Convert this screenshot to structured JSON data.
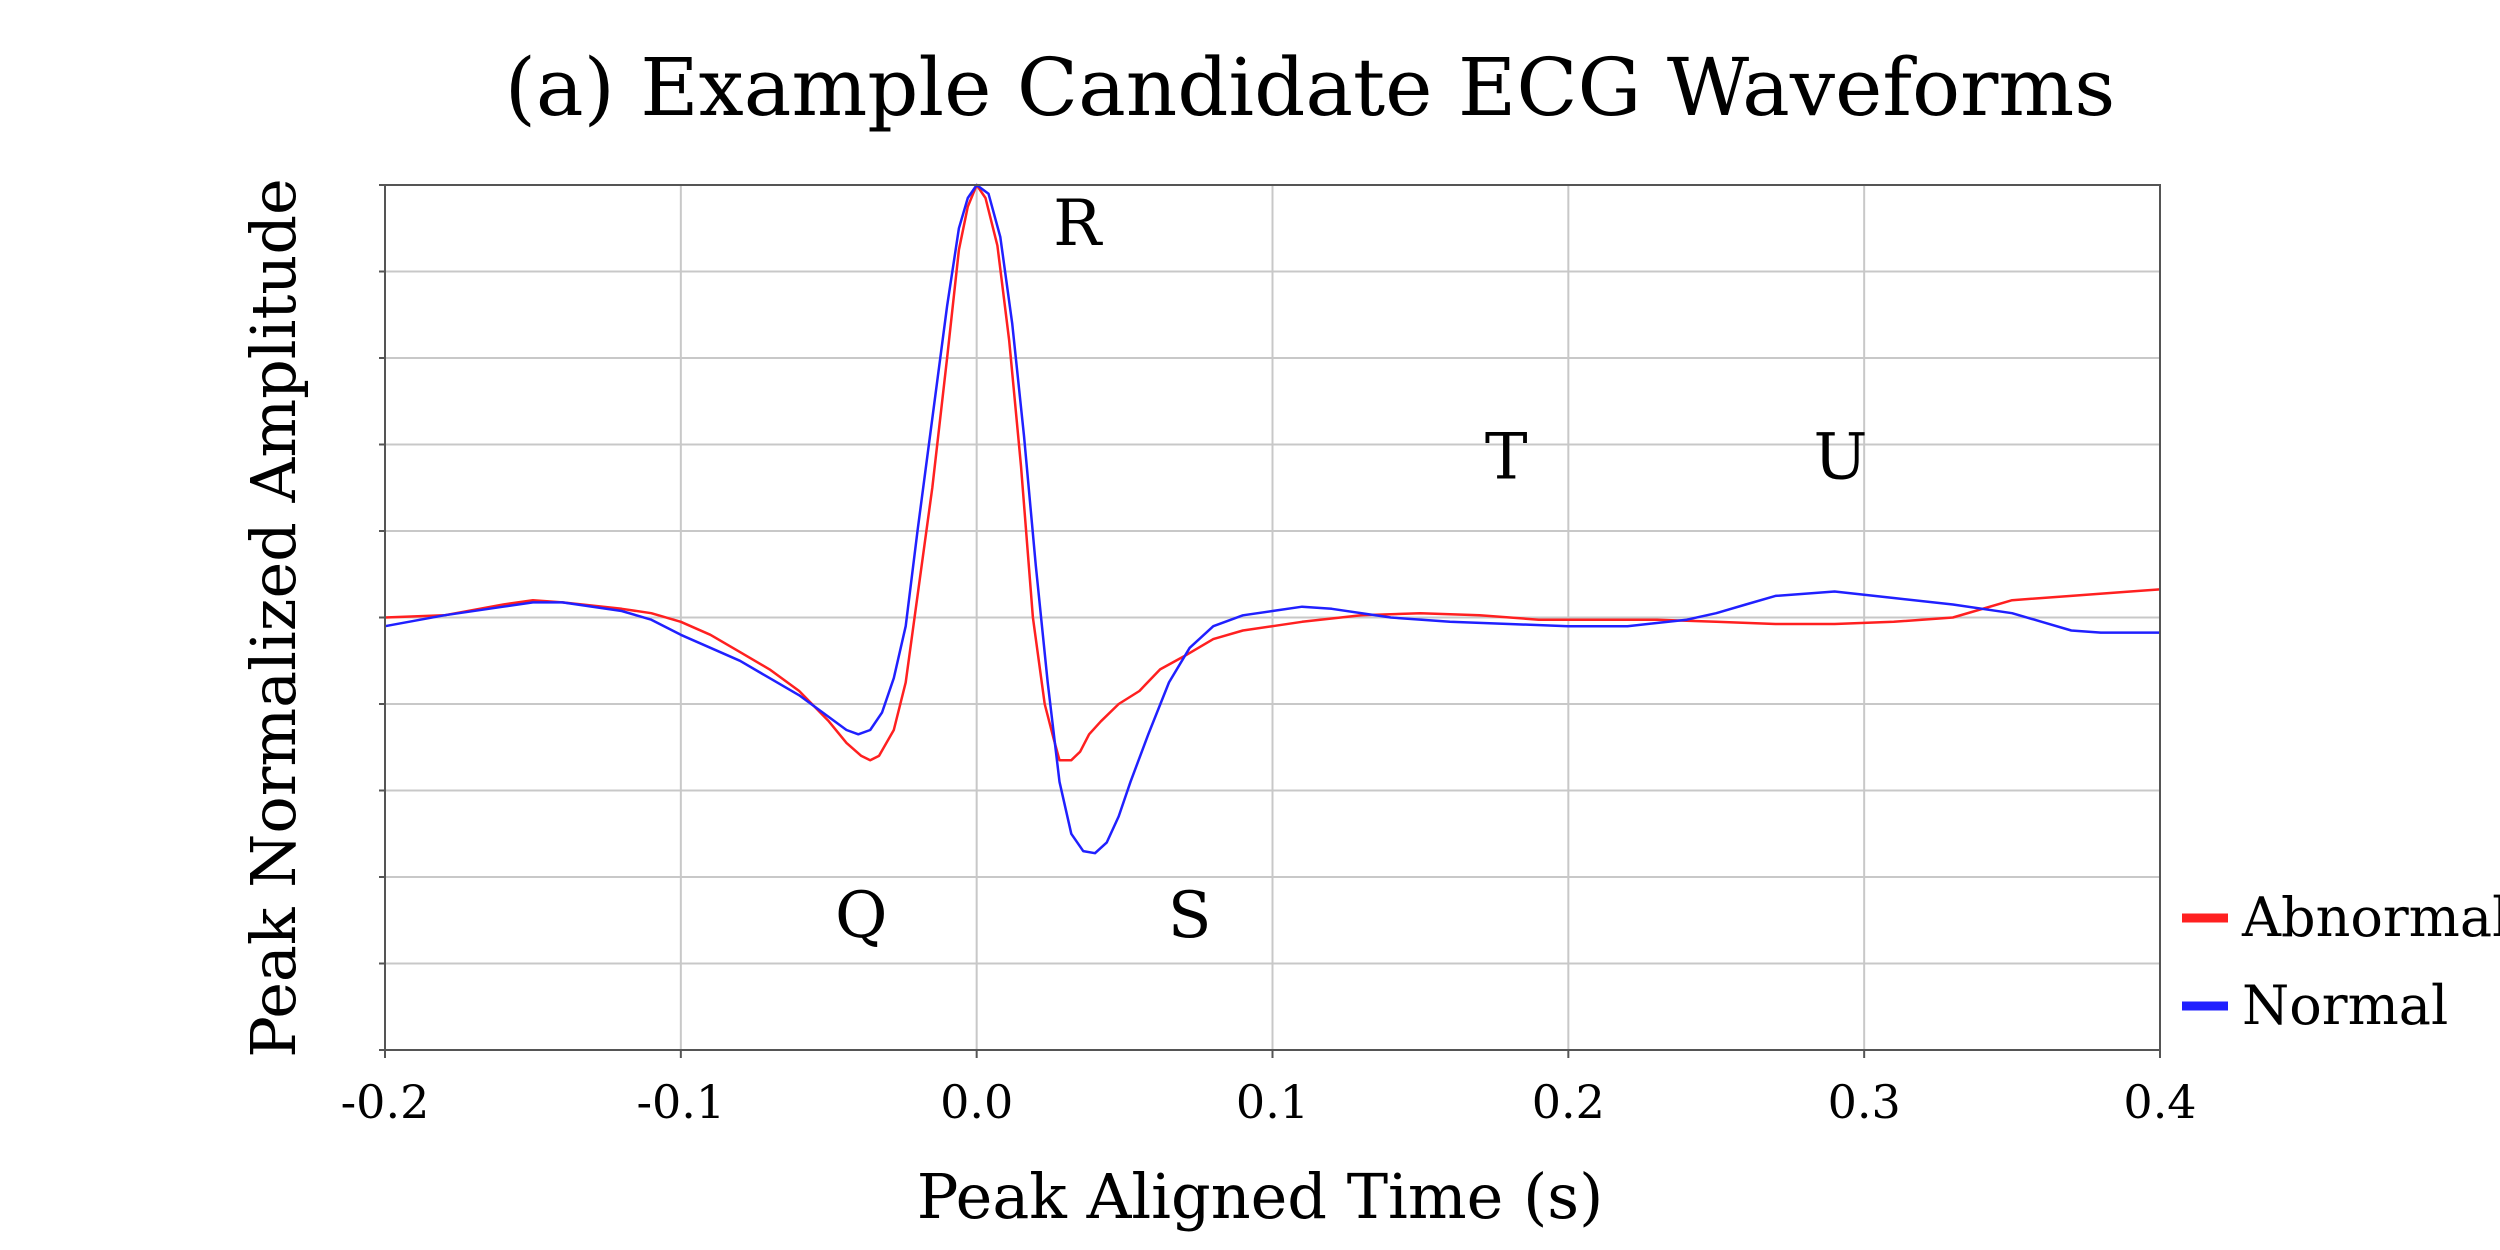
{
  "chart_data": {
    "type": "line",
    "title": "(a) Example Candidate ECG Waveforms",
    "xlabel": "Peak Aligned Time (s)",
    "ylabel": "Peak Normalized Amplitude",
    "xlim": [
      -0.2,
      0.4
    ],
    "ylim": [
      -1.0,
      1.0
    ],
    "x_ticks": [
      -0.2,
      -0.1,
      0.0,
      0.1,
      0.2,
      0.3,
      0.4
    ],
    "x_tick_labels": [
      "-0.2",
      "-0.1",
      "0.0",
      "0.1",
      "0.2",
      "0.3",
      "0.4"
    ],
    "y_ticks": [
      -1.0,
      -0.8,
      -0.6,
      -0.4,
      -0.2,
      0.0,
      0.2,
      0.4,
      0.6,
      0.8,
      1.0
    ],
    "grid": true,
    "legend_position": "right-bottom outside",
    "annotations": [
      {
        "text": "R",
        "x": 0.034,
        "y": 0.9
      },
      {
        "text": "T",
        "x": 0.179,
        "y": 0.36
      },
      {
        "text": "U",
        "x": 0.292,
        "y": 0.36
      },
      {
        "text": "Q",
        "x": -0.039,
        "y": -0.7
      },
      {
        "text": "S",
        "x": 0.072,
        "y": -0.7
      }
    ],
    "series": [
      {
        "name": "Abnormal",
        "color": "#ff2020",
        "points": [
          [
            -0.2,
            0.0
          ],
          [
            -0.18,
            0.005
          ],
          [
            -0.16,
            0.03
          ],
          [
            -0.15,
            0.04
          ],
          [
            -0.14,
            0.035
          ],
          [
            -0.12,
            0.02
          ],
          [
            -0.11,
            0.01
          ],
          [
            -0.1,
            -0.01
          ],
          [
            -0.09,
            -0.04
          ],
          [
            -0.08,
            -0.08
          ],
          [
            -0.07,
            -0.12
          ],
          [
            -0.06,
            -0.17
          ],
          [
            -0.05,
            -0.24
          ],
          [
            -0.044,
            -0.29
          ],
          [
            -0.039,
            -0.32
          ],
          [
            -0.036,
            -0.33
          ],
          [
            -0.033,
            -0.32
          ],
          [
            -0.028,
            -0.26
          ],
          [
            -0.024,
            -0.15
          ],
          [
            -0.02,
            0.05
          ],
          [
            -0.015,
            0.3
          ],
          [
            -0.01,
            0.6
          ],
          [
            -0.006,
            0.85
          ],
          [
            -0.003,
            0.95
          ],
          [
            0.0,
            1.0
          ],
          [
            0.003,
            0.97
          ],
          [
            0.007,
            0.86
          ],
          [
            0.011,
            0.64
          ],
          [
            0.015,
            0.35
          ],
          [
            0.019,
            0.0
          ],
          [
            0.023,
            -0.2
          ],
          [
            0.026,
            -0.28
          ],
          [
            0.028,
            -0.33
          ],
          [
            0.032,
            -0.33
          ],
          [
            0.035,
            -0.31
          ],
          [
            0.038,
            -0.27
          ],
          [
            0.042,
            -0.24
          ],
          [
            0.048,
            -0.2
          ],
          [
            0.055,
            -0.17
          ],
          [
            0.062,
            -0.12
          ],
          [
            0.07,
            -0.09
          ],
          [
            0.08,
            -0.05
          ],
          [
            0.09,
            -0.03
          ],
          [
            0.1,
            -0.02
          ],
          [
            0.11,
            -0.01
          ],
          [
            0.13,
            0.005
          ],
          [
            0.15,
            0.01
          ],
          [
            0.17,
            0.005
          ],
          [
            0.19,
            -0.005
          ],
          [
            0.21,
            -0.005
          ],
          [
            0.23,
            -0.005
          ],
          [
            0.25,
            -0.01
          ],
          [
            0.27,
            -0.015
          ],
          [
            0.29,
            -0.015
          ],
          [
            0.31,
            -0.01
          ],
          [
            0.33,
            0.0
          ],
          [
            0.35,
            0.04
          ],
          [
            0.37,
            0.05
          ],
          [
            0.39,
            0.06
          ],
          [
            0.4,
            0.065
          ]
        ]
      },
      {
        "name": "Normal",
        "color": "#2020ff",
        "points": [
          [
            -0.2,
            -0.02
          ],
          [
            -0.18,
            0.005
          ],
          [
            -0.16,
            0.025
          ],
          [
            -0.15,
            0.035
          ],
          [
            -0.14,
            0.035
          ],
          [
            -0.12,
            0.015
          ],
          [
            -0.11,
            -0.005
          ],
          [
            -0.1,
            -0.04
          ],
          [
            -0.09,
            -0.07
          ],
          [
            -0.08,
            -0.1
          ],
          [
            -0.07,
            -0.14
          ],
          [
            -0.06,
            -0.18
          ],
          [
            -0.05,
            -0.23
          ],
          [
            -0.044,
            -0.26
          ],
          [
            -0.04,
            -0.27
          ],
          [
            -0.036,
            -0.26
          ],
          [
            -0.032,
            -0.22
          ],
          [
            -0.028,
            -0.14
          ],
          [
            -0.024,
            -0.02
          ],
          [
            -0.02,
            0.2
          ],
          [
            -0.015,
            0.46
          ],
          [
            -0.01,
            0.72
          ],
          [
            -0.006,
            0.9
          ],
          [
            -0.003,
            0.97
          ],
          [
            0.0,
            1.0
          ],
          [
            0.004,
            0.98
          ],
          [
            0.008,
            0.88
          ],
          [
            0.012,
            0.68
          ],
          [
            0.016,
            0.42
          ],
          [
            0.02,
            0.12
          ],
          [
            0.024,
            -0.15
          ],
          [
            0.028,
            -0.38
          ],
          [
            0.032,
            -0.5
          ],
          [
            0.036,
            -0.54
          ],
          [
            0.04,
            -0.545
          ],
          [
            0.044,
            -0.52
          ],
          [
            0.048,
            -0.46
          ],
          [
            0.052,
            -0.38
          ],
          [
            0.058,
            -0.27
          ],
          [
            0.065,
            -0.15
          ],
          [
            0.072,
            -0.07
          ],
          [
            0.08,
            -0.02
          ],
          [
            0.09,
            0.005
          ],
          [
            0.1,
            0.015
          ],
          [
            0.11,
            0.025
          ],
          [
            0.12,
            0.02
          ],
          [
            0.14,
            0.0
          ],
          [
            0.16,
            -0.01
          ],
          [
            0.18,
            -0.015
          ],
          [
            0.2,
            -0.02
          ],
          [
            0.22,
            -0.02
          ],
          [
            0.24,
            -0.005
          ],
          [
            0.25,
            0.01
          ],
          [
            0.26,
            0.03
          ],
          [
            0.27,
            0.05
          ],
          [
            0.29,
            0.06
          ],
          [
            0.31,
            0.045
          ],
          [
            0.33,
            0.03
          ],
          [
            0.35,
            0.01
          ],
          [
            0.36,
            -0.01
          ],
          [
            0.37,
            -0.03
          ],
          [
            0.38,
            -0.035
          ],
          [
            0.4,
            -0.035
          ]
        ]
      }
    ]
  }
}
